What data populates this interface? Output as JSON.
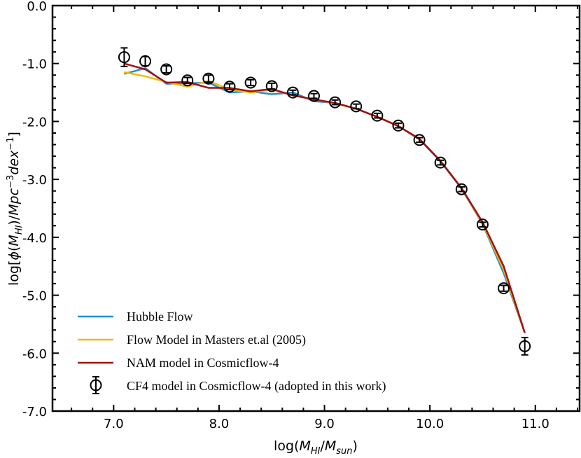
{
  "chart_data": {
    "type": "line",
    "xlabel": "log(M_HI/M_sun)",
    "ylabel": "log[φ(M_HI)/Mpc^-3 dex^-1]",
    "xlim": [
      6.42,
      11.42
    ],
    "ylim": [
      -7.0,
      0.0
    ],
    "xticks": [
      "7.0",
      "8.0",
      "9.0",
      "10.0",
      "11.0"
    ],
    "yticks": [
      "0.0",
      "-1.0",
      "-2.0",
      "-3.0",
      "-4.0",
      "-5.0",
      "-6.0",
      "-7.0"
    ],
    "grid": false,
    "legend_position": "bottom-left",
    "x": [
      7.1,
      7.3,
      7.5,
      7.7,
      7.9,
      8.1,
      8.3,
      8.5,
      8.7,
      8.9,
      9.1,
      9.3,
      9.5,
      9.7,
      9.9,
      10.1,
      10.3,
      10.5,
      10.7,
      10.9
    ],
    "series": [
      {
        "name": "Hubble Flow",
        "kind": "line",
        "color": "#1f8fd6",
        "values": [
          -1.18,
          -1.08,
          -1.35,
          -1.34,
          -1.33,
          -1.5,
          -1.48,
          -1.53,
          -1.5,
          -1.65,
          -1.68,
          -1.78,
          -1.92,
          -2.08,
          -2.31,
          -2.69,
          -3.16,
          -3.77,
          -4.62,
          -5.65
        ]
      },
      {
        "name": "Flow Model in Masters et.al (2005)",
        "kind": "line",
        "color": "#f5b800",
        "values": [
          -1.15,
          -1.22,
          -1.32,
          -1.4,
          -1.3,
          -1.45,
          -1.5,
          -1.45,
          -1.55,
          -1.62,
          -1.69,
          -1.78,
          -1.92,
          -2.08,
          -2.3,
          -2.68,
          -3.15,
          -3.76,
          -4.56,
          -5.65
        ]
      },
      {
        "name": "NAM model in Cosmicflow-4",
        "kind": "line",
        "color": "#a50f0f",
        "values": [
          -1.0,
          -1.1,
          -1.33,
          -1.32,
          -1.42,
          -1.42,
          -1.48,
          -1.44,
          -1.55,
          -1.62,
          -1.68,
          -1.78,
          -1.92,
          -2.08,
          -2.3,
          -2.68,
          -3.15,
          -3.74,
          -4.5,
          -5.65
        ]
      },
      {
        "name": "CF4 model in Cosmicflow-4 (adopted in this work)",
        "kind": "errorbar",
        "color": "#000000",
        "values": [
          -0.89,
          -0.96,
          -1.1,
          -1.29,
          -1.26,
          -1.4,
          -1.33,
          -1.39,
          -1.5,
          -1.56,
          -1.67,
          -1.74,
          -1.9,
          -2.07,
          -2.32,
          -2.71,
          -3.17,
          -3.78,
          -4.88,
          -5.88
        ],
        "errors": [
          0.16,
          0.08,
          0.06,
          0.05,
          0.06,
          0.05,
          0.05,
          0.05,
          0.04,
          0.04,
          0.04,
          0.04,
          0.04,
          0.04,
          0.04,
          0.04,
          0.04,
          0.04,
          0.05,
          0.15
        ]
      }
    ]
  }
}
